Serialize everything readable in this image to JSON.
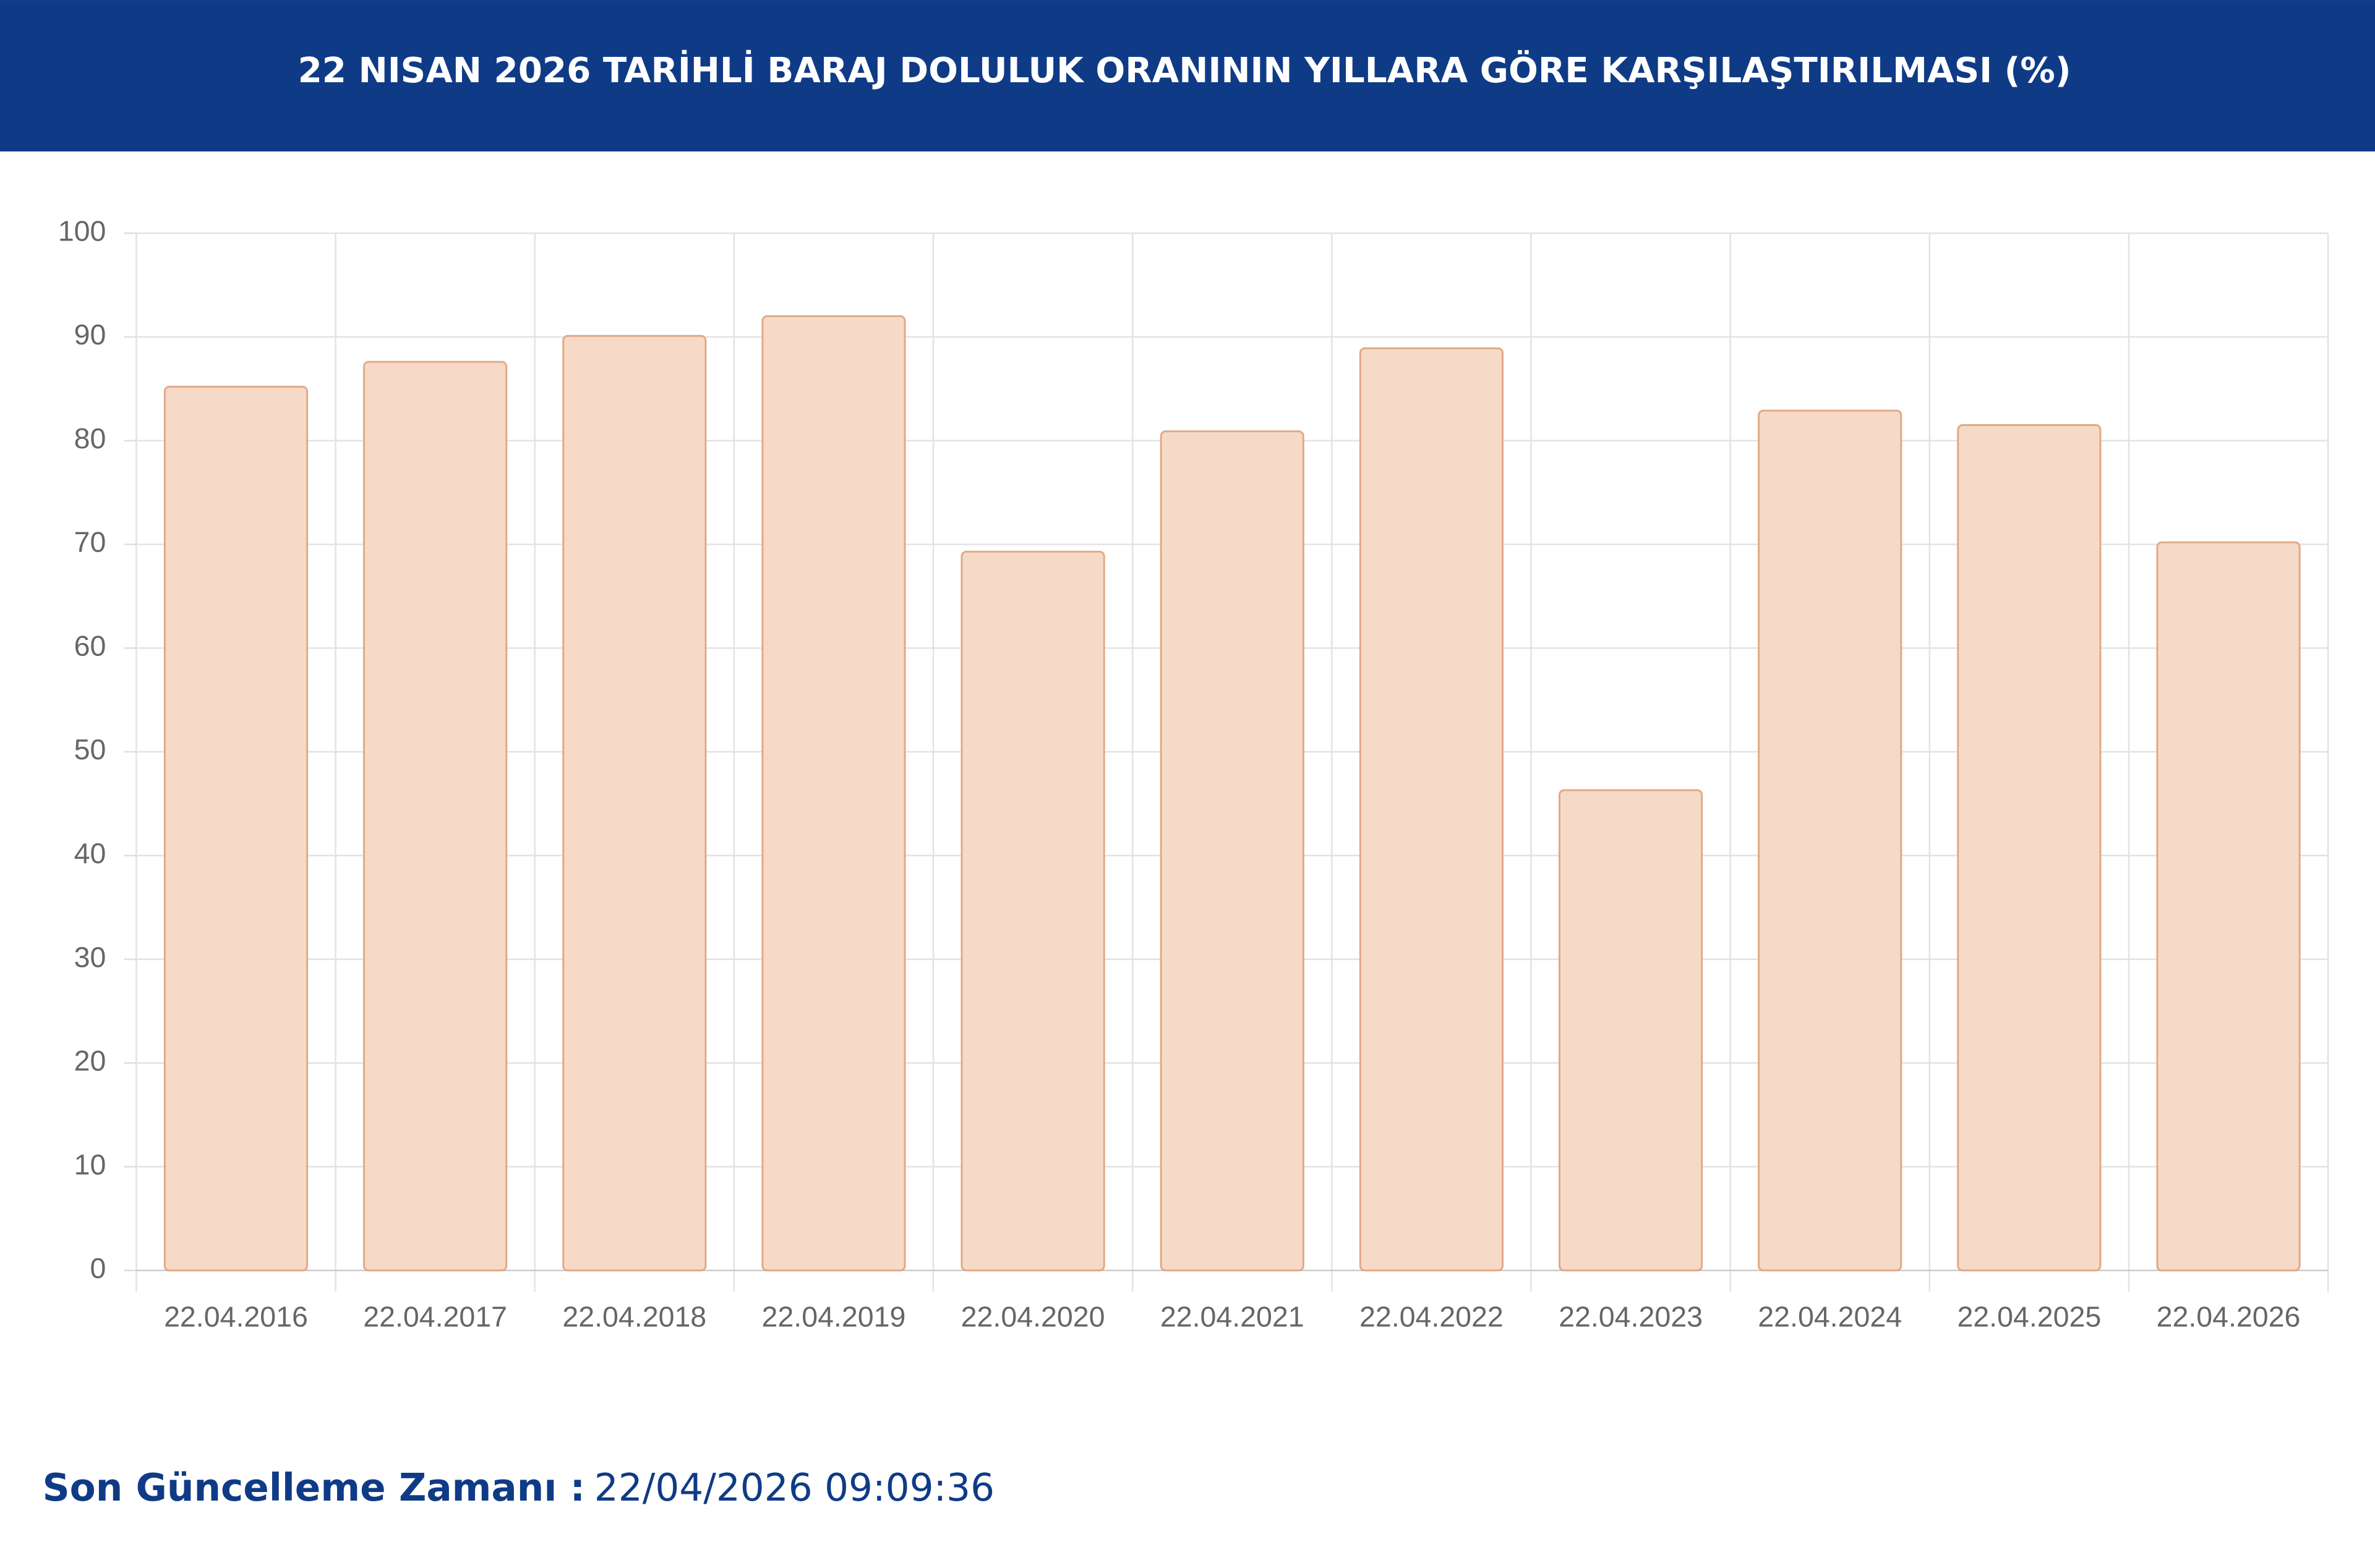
{
  "chart_data": {
    "type": "bar",
    "title": "22 NISAN 2026 TARİHLİ BARAJ DOLULUK ORANININ YILLARA GÖRE KARŞILAŞTIRILMASI (%)",
    "categories": [
      "22.04.2016",
      "22.04.2017",
      "22.04.2018",
      "22.04.2019",
      "22.04.2020",
      "22.04.2021",
      "22.04.2022",
      "22.04.2023",
      "22.04.2024",
      "22.04.2025",
      "22.04.2026"
    ],
    "values": [
      85.2,
      87.6,
      90.1,
      92.0,
      69.3,
      80.9,
      88.9,
      46.3,
      82.9,
      81.5,
      70.2
    ],
    "color": "#f6dac7",
    "edge_color": "#e2a885",
    "ylim": [
      0,
      100
    ],
    "yticks": [
      0,
      10,
      20,
      30,
      40,
      50,
      60,
      70,
      80,
      90,
      100
    ],
    "grid": true
  },
  "footer": {
    "label": "Son Güncelleme Zamanı :",
    "value": "22/04/2026 09:09:36"
  }
}
